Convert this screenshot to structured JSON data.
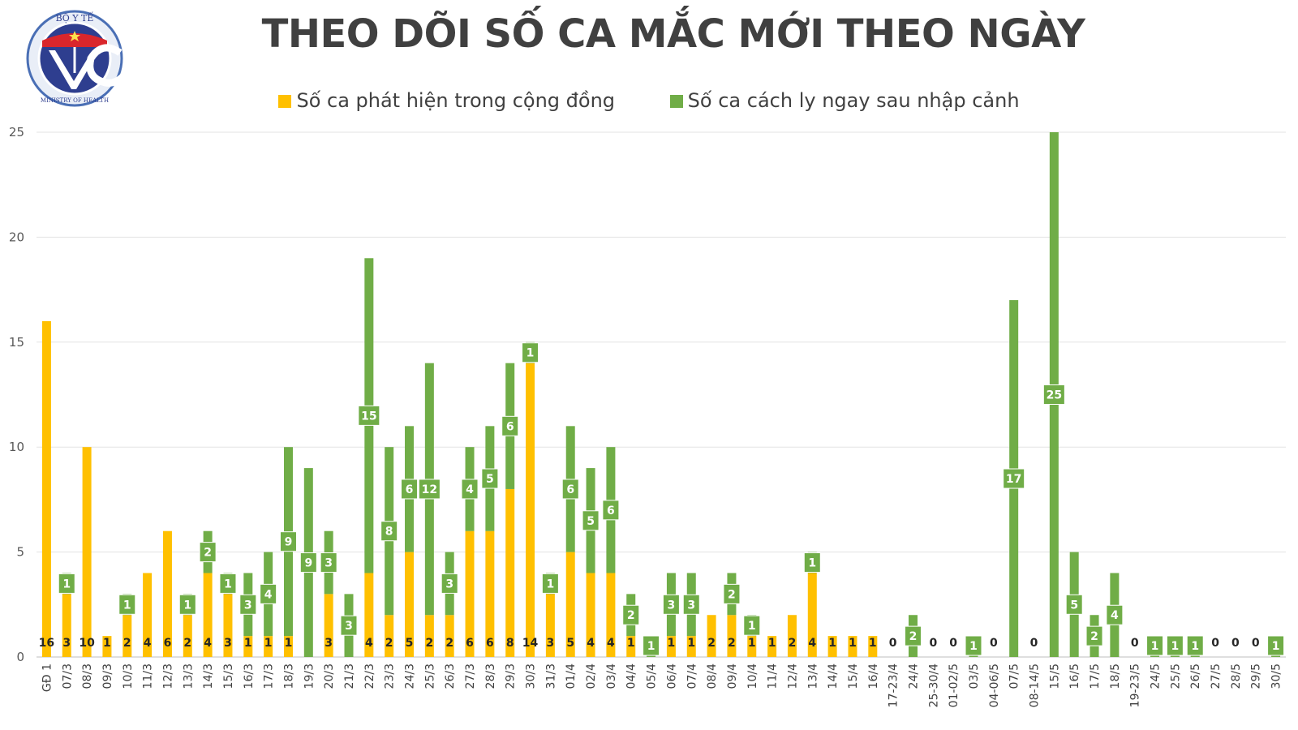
{
  "logo": {
    "top_text": "BỘ Y TẾ",
    "bottom_text": "MINISTRY OF HEALTH"
  },
  "chart_data": {
    "type": "bar",
    "stacked": true,
    "title": "THEO DÕI SỐ CA MẮC MỚI THEO NGÀY",
    "xlabel": "",
    "ylabel": "",
    "ylim": [
      0,
      25
    ],
    "yticks": [
      0,
      5,
      10,
      15,
      20,
      25
    ],
    "grid": true,
    "legend_position": "top",
    "categories": [
      "GĐ 1",
      "07/3",
      "08/3",
      "09/3",
      "10/3",
      "11/3",
      "12/3",
      "13/3",
      "14/3",
      "15/3",
      "16/3",
      "17/3",
      "18/3",
      "19/3",
      "20/3",
      "21/3",
      "22/3",
      "23/3",
      "24/3",
      "25/3",
      "26/3",
      "27/3",
      "28/3",
      "29/3",
      "30/3",
      "31/3",
      "01/4",
      "02/4",
      "03/4",
      "04/4",
      "05/4",
      "06/4",
      "07/4",
      "08/4",
      "09/4",
      "10/4",
      "11/4",
      "12/4",
      "13/4",
      "14/4",
      "15/4",
      "16/4",
      "17-23/4",
      "24/4",
      "25-30/4",
      "01-02/5",
      "03/5",
      "04-06/5",
      "07/5",
      "08-14/5",
      "15/5",
      "16/5",
      "17/5",
      "18/5",
      "19-23/5",
      "24/5",
      "25/5",
      "26/5",
      "27/5",
      "28/5",
      "29/5",
      "30/5"
    ],
    "series": [
      {
        "name": "Số ca phát hiện trong cộng đồng",
        "color": "#FFC000",
        "values": [
          16,
          3,
          10,
          1,
          2,
          4,
          6,
          2,
          4,
          3,
          1,
          1,
          1,
          0,
          3,
          0,
          4,
          2,
          5,
          2,
          2,
          6,
          6,
          8,
          14,
          3,
          5,
          4,
          4,
          1,
          0,
          1,
          1,
          2,
          2,
          1,
          1,
          2,
          4,
          1,
          1,
          1,
          0,
          0,
          0,
          0,
          0,
          0,
          0,
          0,
          0,
          0,
          0,
          0,
          0,
          0,
          0,
          0,
          0,
          0,
          0,
          0
        ]
      },
      {
        "name": "Số ca cách ly ngay sau nhập cảnh",
        "color": "#70AD47",
        "values": [
          0,
          1,
          0,
          0,
          1,
          0,
          0,
          1,
          2,
          1,
          3,
          4,
          9,
          9,
          3,
          3,
          15,
          8,
          6,
          12,
          3,
          4,
          5,
          6,
          1,
          1,
          6,
          5,
          6,
          2,
          1,
          3,
          3,
          0,
          2,
          1,
          0,
          0,
          1,
          0,
          0,
          0,
          0,
          2,
          0,
          0,
          1,
          0,
          17,
          0,
          25,
          5,
          2,
          4,
          0,
          1,
          1,
          1,
          0,
          0,
          0,
          1
        ]
      }
    ]
  }
}
